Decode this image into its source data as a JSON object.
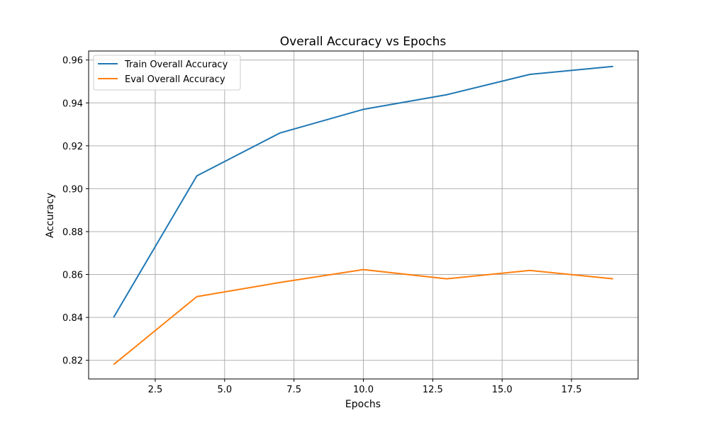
{
  "chart_data": {
    "type": "line",
    "title": "Overall Accuracy vs Epochs",
    "xlabel": "Epochs",
    "ylabel": "Accuracy",
    "xlim": [
      0.1,
      19.9
    ],
    "ylim": [
      0.8113,
      0.9642
    ],
    "xticks": [
      2.5,
      5.0,
      7.5,
      10.0,
      12.5,
      15.0,
      17.5
    ],
    "xtick_labels": [
      "2.5",
      "5.0",
      "7.5",
      "10.0",
      "12.5",
      "15.0",
      "17.5"
    ],
    "yticks": [
      0.82,
      0.84,
      0.86,
      0.88,
      0.9,
      0.92,
      0.94,
      0.96
    ],
    "ytick_labels": [
      "0.82",
      "0.84",
      "0.86",
      "0.88",
      "0.90",
      "0.92",
      "0.94",
      "0.96"
    ],
    "grid": true,
    "legend_position": "top-left",
    "x": [
      1,
      4,
      7,
      10,
      13,
      16,
      19
    ],
    "series": [
      {
        "name": "Train Overall Accuracy",
        "color": "#1f77b4",
        "values": [
          0.84,
          0.906,
          0.926,
          0.937,
          0.9438,
          0.9533,
          0.957
        ]
      },
      {
        "name": "Eval Overall Accuracy",
        "color": "#ff7f0e",
        "values": [
          0.818,
          0.8497,
          0.8563,
          0.8623,
          0.858,
          0.8619,
          0.858
        ]
      }
    ]
  }
}
